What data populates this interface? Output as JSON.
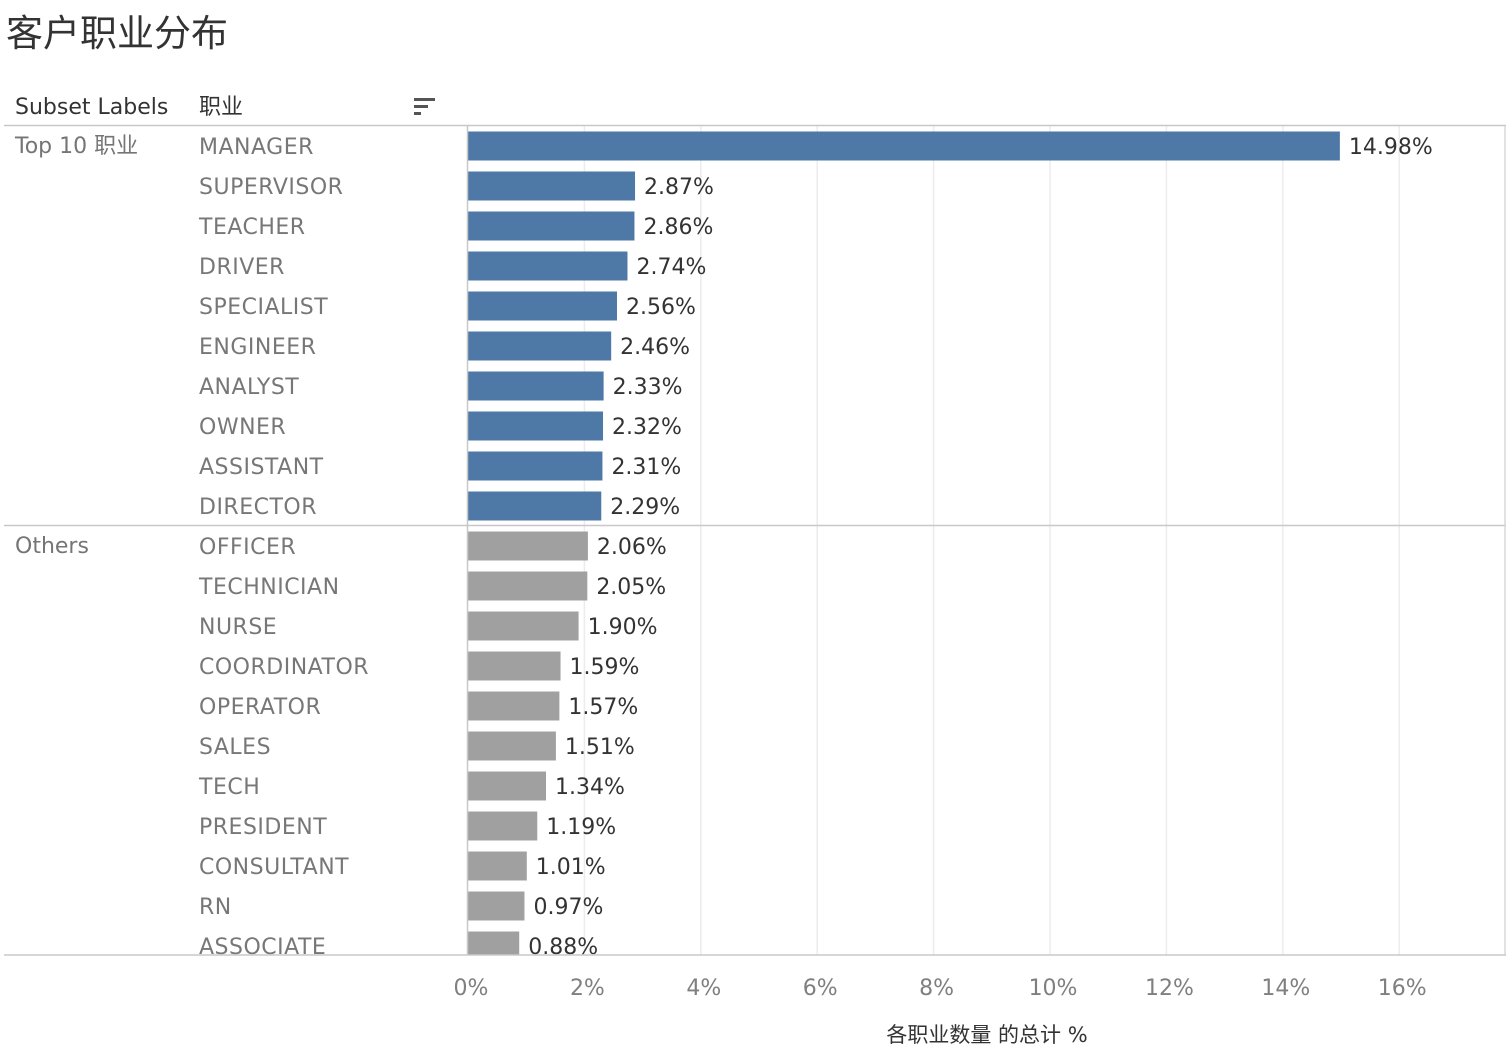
{
  "chart_data": {
    "type": "bar",
    "orientation": "horizontal",
    "title": "客户职业分布",
    "row_headers": [
      "Subset Labels",
      "职业"
    ],
    "groups": [
      {
        "name": "Top 10 职业",
        "color": "#4e79a7",
        "categories": [
          "MANAGER",
          "SUPERVISOR",
          "TEACHER",
          "DRIVER",
          "SPECIALIST",
          "ENGINEER",
          "ANALYST",
          "OWNER",
          "ASSISTANT",
          "DIRECTOR"
        ],
        "values": [
          14.98,
          2.87,
          2.86,
          2.74,
          2.56,
          2.46,
          2.33,
          2.32,
          2.31,
          2.29
        ],
        "labels": [
          "14.98%",
          "2.87%",
          "2.86%",
          "2.74%",
          "2.56%",
          "2.46%",
          "2.33%",
          "2.32%",
          "2.31%",
          "2.29%"
        ]
      },
      {
        "name": "Others",
        "color": "#a0a0a0",
        "categories": [
          "OFFICER",
          "TECHNICIAN",
          "NURSE",
          "COORDINATOR",
          "OPERATOR",
          "SALES",
          "TECH",
          "PRESIDENT",
          "CONSULTANT",
          "RN",
          "ASSOCIATE"
        ],
        "values": [
          2.06,
          2.05,
          1.9,
          1.59,
          1.57,
          1.51,
          1.34,
          1.19,
          1.01,
          0.97,
          0.88
        ],
        "labels": [
          "2.06%",
          "2.05%",
          "1.90%",
          "1.59%",
          "1.57%",
          "1.51%",
          "1.34%",
          "1.19%",
          "1.01%",
          "0.97%",
          "0.88%"
        ]
      }
    ],
    "xlabel": "各职业数量 的总计 %",
    "xlim": [
      0,
      17.8
    ],
    "xticks": [
      0,
      2,
      4,
      6,
      8,
      10,
      12,
      14,
      16
    ],
    "xtick_labels": [
      "0%",
      "2%",
      "4%",
      "6%",
      "8%",
      "10%",
      "12%",
      "14%",
      "16%"
    ],
    "grid": true,
    "sort_icon": "sort-descending-icon"
  }
}
